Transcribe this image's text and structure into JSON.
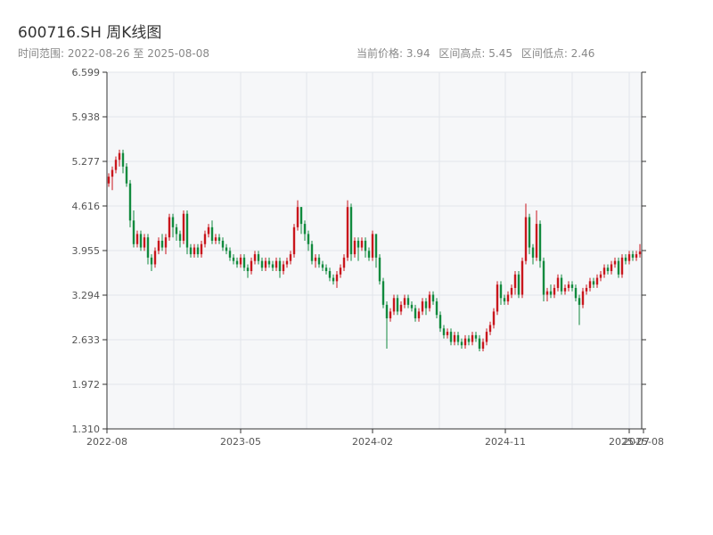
{
  "header": {
    "title": "600716.SH 周K线图",
    "range_text": "时间范围: 2022-08-26 至 2025-08-08",
    "current_price_text": "当前价格: 3.94",
    "high_text": "区间高点: 5.45",
    "low_text": "区间低点: 2.46"
  },
  "chart_data": {
    "type": "candlestick",
    "title": "600716.SH 周K线图",
    "ytick_labels": [
      "6.599",
      "5.938",
      "5.277",
      "4.616",
      "3.955",
      "3.294",
      "2.633",
      "1.972",
      "1.310"
    ],
    "xtick_labels": [
      "2022-08",
      "2023-05",
      "2024-02",
      "2024-11",
      "2025-07",
      "2025-08"
    ],
    "ylim": [
      1.31,
      6.599
    ],
    "grid": true,
    "up_color": "#c9161d",
    "down_color": "#118a3e",
    "series": [
      [
        4.95,
        5.05,
        5.1,
        4.9
      ],
      [
        5.05,
        5.15,
        5.2,
        4.85
      ],
      [
        5.15,
        5.3,
        5.35,
        5.1
      ],
      [
        5.3,
        5.4,
        5.45,
        5.2
      ],
      [
        5.4,
        5.2,
        5.45,
        5.1
      ],
      [
        5.2,
        4.95,
        5.25,
        4.9
      ],
      [
        4.95,
        4.4,
        5.0,
        4.3
      ],
      [
        4.4,
        4.05,
        4.55,
        4.0
      ],
      [
        4.05,
        4.2,
        4.25,
        4.0
      ],
      [
        4.2,
        4.0,
        4.25,
        3.95
      ],
      [
        4.0,
        4.15,
        4.2,
        3.95
      ],
      [
        4.15,
        3.85,
        4.2,
        3.75
      ],
      [
        3.85,
        3.75,
        3.9,
        3.65
      ],
      [
        3.75,
        3.95,
        4.0,
        3.7
      ],
      [
        3.95,
        4.1,
        4.15,
        3.9
      ],
      [
        4.1,
        4.0,
        4.2,
        3.95
      ],
      [
        4.0,
        4.15,
        4.2,
        3.9
      ],
      [
        4.15,
        4.45,
        4.5,
        4.1
      ],
      [
        4.45,
        4.3,
        4.5,
        4.15
      ],
      [
        4.3,
        4.2,
        4.35,
        4.1
      ],
      [
        4.2,
        4.1,
        4.25,
        4.0
      ],
      [
        4.1,
        4.5,
        4.55,
        4.05
      ],
      [
        4.5,
        4.0,
        4.55,
        3.9
      ],
      [
        4.0,
        3.9,
        4.05,
        3.85
      ],
      [
        3.9,
        4.0,
        4.05,
        3.85
      ],
      [
        4.0,
        3.9,
        4.05,
        3.85
      ],
      [
        3.9,
        4.05,
        4.1,
        3.85
      ],
      [
        4.05,
        4.2,
        4.25,
        4.0
      ],
      [
        4.2,
        4.3,
        4.35,
        4.15
      ],
      [
        4.3,
        4.1,
        4.4,
        4.05
      ],
      [
        4.1,
        4.15,
        4.2,
        4.05
      ],
      [
        4.15,
        4.1,
        4.2,
        4.05
      ],
      [
        4.1,
        4.0,
        4.15,
        3.95
      ],
      [
        4.0,
        3.95,
        4.05,
        3.9
      ],
      [
        3.95,
        3.85,
        4.0,
        3.8
      ],
      [
        3.85,
        3.8,
        3.9,
        3.75
      ],
      [
        3.8,
        3.75,
        3.85,
        3.7
      ],
      [
        3.75,
        3.85,
        3.9,
        3.7
      ],
      [
        3.85,
        3.7,
        3.9,
        3.65
      ],
      [
        3.7,
        3.65,
        3.75,
        3.55
      ],
      [
        3.65,
        3.8,
        3.85,
        3.6
      ],
      [
        3.8,
        3.9,
        3.95,
        3.75
      ],
      [
        3.9,
        3.8,
        3.95,
        3.75
      ],
      [
        3.8,
        3.7,
        3.85,
        3.65
      ],
      [
        3.7,
        3.8,
        3.85,
        3.65
      ],
      [
        3.8,
        3.75,
        3.85,
        3.7
      ],
      [
        3.75,
        3.7,
        3.8,
        3.65
      ],
      [
        3.7,
        3.8,
        3.85,
        3.65
      ],
      [
        3.8,
        3.65,
        3.85,
        3.55
      ],
      [
        3.65,
        3.75,
        3.8,
        3.6
      ],
      [
        3.75,
        3.8,
        3.85,
        3.7
      ],
      [
        3.8,
        3.9,
        3.95,
        3.75
      ],
      [
        3.9,
        4.3,
        4.35,
        3.85
      ],
      [
        4.3,
        4.6,
        4.7,
        4.25
      ],
      [
        4.6,
        4.35,
        4.6,
        4.2
      ],
      [
        4.35,
        4.2,
        4.4,
        4.1
      ],
      [
        4.2,
        4.05,
        4.25,
        3.95
      ],
      [
        4.05,
        3.8,
        4.1,
        3.75
      ],
      [
        3.8,
        3.85,
        3.9,
        3.7
      ],
      [
        3.85,
        3.75,
        3.9,
        3.7
      ],
      [
        3.75,
        3.7,
        3.8,
        3.65
      ],
      [
        3.7,
        3.65,
        3.75,
        3.6
      ],
      [
        3.65,
        3.55,
        3.7,
        3.5
      ],
      [
        3.55,
        3.5,
        3.6,
        3.45
      ],
      [
        3.5,
        3.6,
        3.65,
        3.4
      ],
      [
        3.6,
        3.7,
        3.75,
        3.55
      ],
      [
        3.7,
        3.85,
        3.9,
        3.65
      ],
      [
        3.85,
        4.6,
        4.7,
        3.8
      ],
      [
        4.6,
        3.9,
        4.65,
        3.8
      ],
      [
        3.9,
        4.1,
        4.15,
        3.85
      ],
      [
        4.1,
        4.0,
        4.15,
        3.8
      ],
      [
        4.0,
        4.1,
        4.15,
        3.95
      ],
      [
        4.1,
        3.95,
        4.15,
        3.85
      ],
      [
        3.95,
        3.85,
        4.0,
        3.8
      ],
      [
        3.85,
        4.2,
        4.25,
        3.8
      ],
      [
        4.2,
        3.85,
        4.2,
        3.7
      ],
      [
        3.85,
        3.5,
        3.9,
        3.45
      ],
      [
        3.5,
        3.15,
        3.55,
        3.1
      ],
      [
        3.15,
        2.95,
        3.2,
        2.5
      ],
      [
        2.95,
        3.05,
        3.1,
        2.9
      ],
      [
        3.05,
        3.25,
        3.3,
        3.0
      ],
      [
        3.25,
        3.05,
        3.3,
        3.0
      ],
      [
        3.05,
        3.15,
        3.2,
        3.0
      ],
      [
        3.15,
        3.25,
        3.3,
        3.1
      ],
      [
        3.25,
        3.15,
        3.3,
        3.1
      ],
      [
        3.15,
        3.1,
        3.2,
        3.05
      ],
      [
        3.1,
        2.95,
        3.15,
        2.9
      ],
      [
        2.95,
        3.05,
        3.1,
        2.9
      ],
      [
        3.05,
        3.2,
        3.25,
        3.0
      ],
      [
        3.2,
        3.1,
        3.25,
        3.0
      ],
      [
        3.1,
        3.3,
        3.35,
        3.05
      ],
      [
        3.3,
        3.2,
        3.35,
        3.15
      ],
      [
        3.2,
        3.0,
        3.25,
        2.95
      ],
      [
        3.0,
        2.8,
        3.05,
        2.75
      ],
      [
        2.8,
        2.7,
        2.85,
        2.65
      ],
      [
        2.7,
        2.75,
        2.8,
        2.65
      ],
      [
        2.75,
        2.6,
        2.8,
        2.55
      ],
      [
        2.6,
        2.7,
        2.75,
        2.55
      ],
      [
        2.7,
        2.6,
        2.75,
        2.55
      ],
      [
        2.6,
        2.55,
        2.65,
        2.5
      ],
      [
        2.55,
        2.65,
        2.7,
        2.5
      ],
      [
        2.65,
        2.6,
        2.7,
        2.55
      ],
      [
        2.6,
        2.7,
        2.75,
        2.55
      ],
      [
        2.7,
        2.65,
        2.75,
        2.6
      ],
      [
        2.65,
        2.5,
        2.7,
        2.46
      ],
      [
        2.5,
        2.6,
        2.65,
        2.46
      ],
      [
        2.6,
        2.75,
        2.8,
        2.55
      ],
      [
        2.75,
        2.85,
        2.9,
        2.7
      ],
      [
        2.85,
        3.05,
        3.1,
        2.8
      ],
      [
        3.05,
        3.45,
        3.5,
        3.0
      ],
      [
        3.45,
        3.25,
        3.5,
        3.15
      ],
      [
        3.25,
        3.2,
        3.3,
        3.15
      ],
      [
        3.2,
        3.3,
        3.35,
        3.15
      ],
      [
        3.3,
        3.4,
        3.45,
        3.25
      ],
      [
        3.4,
        3.6,
        3.65,
        3.3
      ],
      [
        3.6,
        3.3,
        3.65,
        3.25
      ],
      [
        3.3,
        3.8,
        3.85,
        3.25
      ],
      [
        3.8,
        4.45,
        4.65,
        3.75
      ],
      [
        4.45,
        4.0,
        4.5,
        3.9
      ],
      [
        4.0,
        3.85,
        4.05,
        3.75
      ],
      [
        3.85,
        4.35,
        4.55,
        3.8
      ],
      [
        4.35,
        3.8,
        4.4,
        3.7
      ],
      [
        3.8,
        3.3,
        3.85,
        3.2
      ],
      [
        3.3,
        3.35,
        3.4,
        3.2
      ],
      [
        3.35,
        3.3,
        3.45,
        3.25
      ],
      [
        3.3,
        3.4,
        3.45,
        3.25
      ],
      [
        3.4,
        3.55,
        3.6,
        3.35
      ],
      [
        3.55,
        3.35,
        3.6,
        3.3
      ],
      [
        3.35,
        3.4,
        3.45,
        3.3
      ],
      [
        3.4,
        3.45,
        3.5,
        3.35
      ],
      [
        3.45,
        3.4,
        3.5,
        3.35
      ],
      [
        3.4,
        3.25,
        3.45,
        3.2
      ],
      [
        3.25,
        3.15,
        3.3,
        2.85
      ],
      [
        3.15,
        3.35,
        3.4,
        3.1
      ],
      [
        3.35,
        3.4,
        3.45,
        3.3
      ],
      [
        3.4,
        3.5,
        3.55,
        3.35
      ],
      [
        3.5,
        3.45,
        3.55,
        3.4
      ],
      [
        3.45,
        3.55,
        3.6,
        3.4
      ],
      [
        3.55,
        3.6,
        3.65,
        3.5
      ],
      [
        3.6,
        3.7,
        3.75,
        3.55
      ],
      [
        3.7,
        3.65,
        3.75,
        3.6
      ],
      [
        3.65,
        3.75,
        3.8,
        3.6
      ],
      [
        3.75,
        3.8,
        3.85,
        3.7
      ],
      [
        3.8,
        3.6,
        3.85,
        3.55
      ],
      [
        3.6,
        3.85,
        3.9,
        3.55
      ],
      [
        3.85,
        3.8,
        3.9,
        3.75
      ],
      [
        3.8,
        3.9,
        3.95,
        3.75
      ],
      [
        3.9,
        3.85,
        3.95,
        3.8
      ],
      [
        3.85,
        3.9,
        3.95,
        3.8
      ],
      [
        3.9,
        3.94,
        4.05,
        3.85
      ]
    ]
  }
}
